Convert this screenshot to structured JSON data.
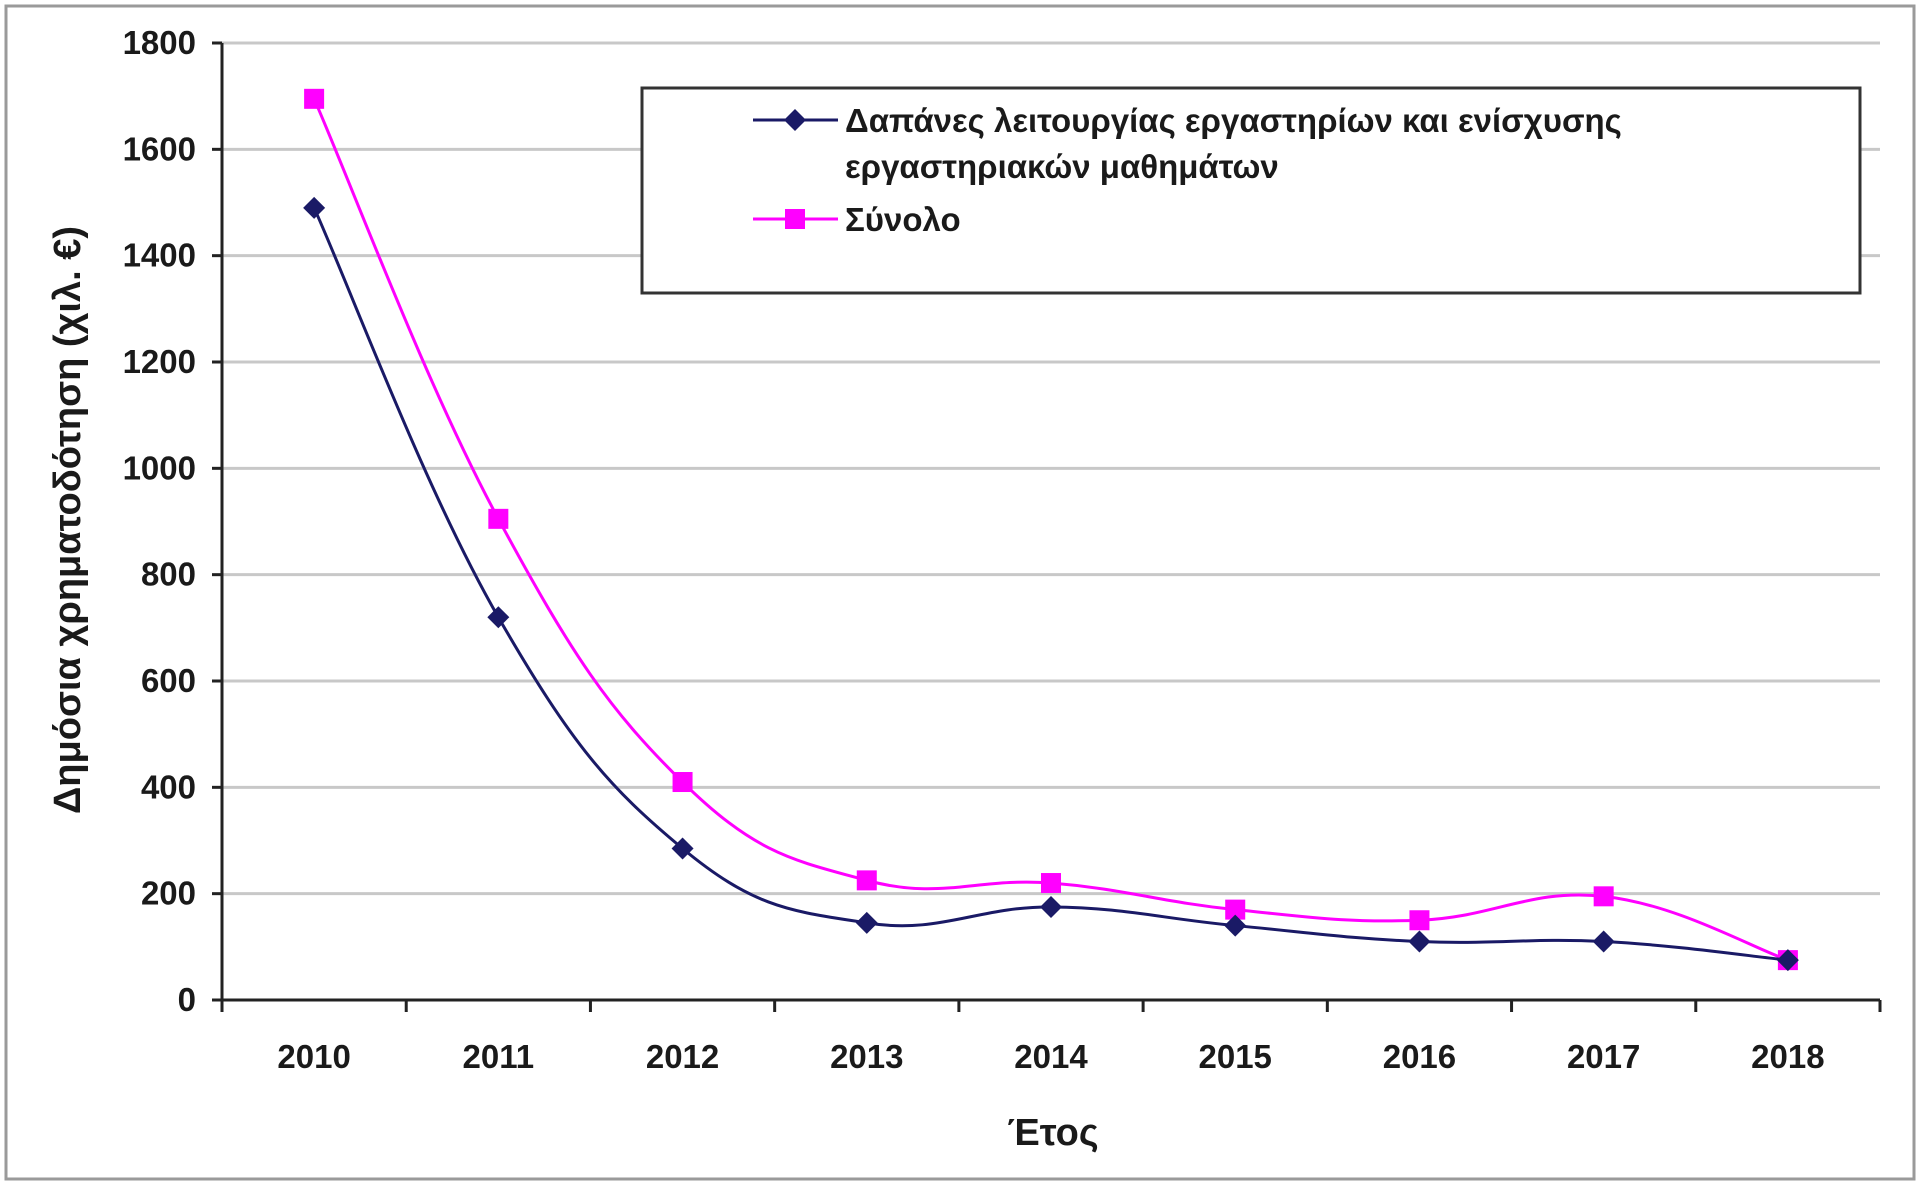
{
  "chart_data": {
    "type": "line",
    "smooth": true,
    "title": "",
    "xlabel": "Έτος",
    "ylabel": "Δημόσια χρηματοδότηση (χιλ. €)",
    "categories": [
      "2010",
      "2011",
      "2012",
      "2013",
      "2014",
      "2015",
      "2016",
      "2017",
      "2018"
    ],
    "ylim": [
      0,
      1800
    ],
    "yticks": [
      "0",
      "200",
      "400",
      "600",
      "800",
      "1000",
      "1200",
      "1400",
      "1600",
      "1800"
    ],
    "grid": "horizontal",
    "legend_position": "top-right",
    "series": [
      {
        "name_lines": [
          "Δαπάνες λειτουργίας εργαστηρίων και ενίσχυσης",
          "εργαστηριακών μαθημάτων"
        ],
        "marker": "diamond",
        "color": "#1a1a66",
        "values": [
          1490,
          720,
          285,
          145,
          175,
          140,
          110,
          110,
          75
        ]
      },
      {
        "name_lines": [
          "Σύνολο"
        ],
        "marker": "square",
        "color": "#ff00ff",
        "values": [
          1695,
          905,
          410,
          225,
          220,
          170,
          150,
          195,
          75
        ]
      }
    ]
  }
}
